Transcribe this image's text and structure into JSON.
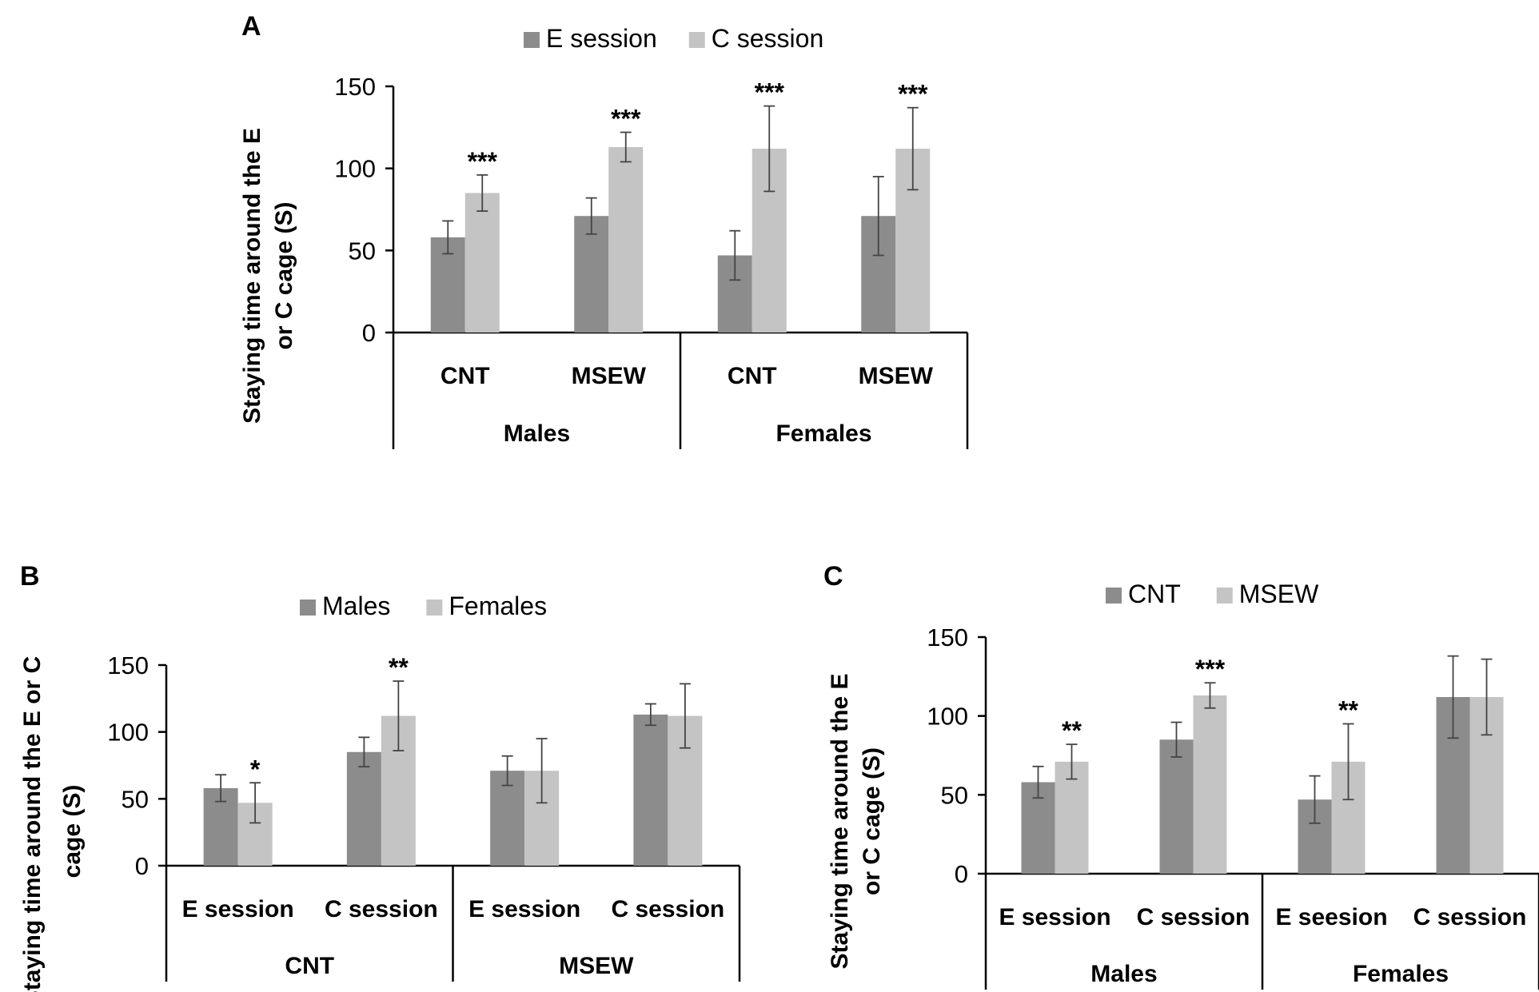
{
  "colors": {
    "dark_bar": "#8c8c8c",
    "light_bar": "#c4c4c4",
    "axis": "#000000",
    "error_bar": "#444444"
  },
  "chart_data": [
    {
      "id": "A",
      "panel_label": "A",
      "type": "bar",
      "title": "",
      "ylabel_lines": [
        "Staying time around the E",
        "or C cage (S)"
      ],
      "ylim": [
        0,
        150
      ],
      "yticks": [
        0,
        50,
        100,
        150
      ],
      "grid": false,
      "legend_position": "top",
      "categories": [
        "CNT",
        "MSEW",
        "CNT",
        "MSEW"
      ],
      "groups": [
        {
          "label": "Males",
          "span": [
            0,
            1
          ]
        },
        {
          "label": "Females",
          "span": [
            2,
            3
          ]
        }
      ],
      "series": [
        {
          "name": "E session",
          "color_key": "dark_bar",
          "values": [
            58,
            71,
            47,
            71
          ],
          "errors": [
            10,
            11,
            15,
            24
          ]
        },
        {
          "name": "C session",
          "color_key": "light_bar",
          "values": [
            85,
            113,
            112,
            112
          ],
          "errors": [
            11,
            9,
            26,
            25
          ]
        }
      ],
      "annotations": [
        {
          "text": "***",
          "category": 0,
          "series": 1
        },
        {
          "text": "***",
          "category": 1,
          "series": 1
        },
        {
          "text": "***",
          "category": 2,
          "series": 1
        },
        {
          "text": "***",
          "category": 3,
          "series": 1
        }
      ]
    },
    {
      "id": "B",
      "panel_label": "B",
      "type": "bar",
      "title": "",
      "ylabel_lines": [
        "Staying time around the E or C",
        "cage (S)"
      ],
      "ylim": [
        0,
        150
      ],
      "yticks": [
        0,
        50,
        100,
        150
      ],
      "grid": false,
      "legend_position": "top",
      "categories": [
        "E session",
        "C session",
        "E session",
        "C session"
      ],
      "groups": [
        {
          "label": "CNT",
          "span": [
            0,
            1
          ]
        },
        {
          "label": "MSEW",
          "span": [
            2,
            3
          ]
        }
      ],
      "series": [
        {
          "name": "Males",
          "color_key": "dark_bar",
          "values": [
            58,
            85,
            71,
            113
          ],
          "errors": [
            10,
            11,
            11,
            8
          ]
        },
        {
          "name": "Females",
          "color_key": "light_bar",
          "values": [
            47,
            112,
            71,
            112
          ],
          "errors": [
            15,
            26,
            24,
            24
          ]
        }
      ],
      "annotations": [
        {
          "text": "*",
          "category": 0,
          "series": 1
        },
        {
          "text": "**",
          "category": 1,
          "series": 1
        }
      ]
    },
    {
      "id": "C",
      "panel_label": "C",
      "type": "bar",
      "title": "",
      "ylabel_lines": [
        "Staying time around the E",
        "or C cage (S)"
      ],
      "ylim": [
        0,
        150
      ],
      "yticks": [
        0,
        50,
        100,
        150
      ],
      "grid": false,
      "legend_position": "top",
      "categories": [
        "E session",
        "C session",
        "E seesion",
        "C session"
      ],
      "groups": [
        {
          "label": "Males",
          "span": [
            0,
            1
          ]
        },
        {
          "label": "Females",
          "span": [
            2,
            3
          ]
        }
      ],
      "series": [
        {
          "name": "CNT",
          "color_key": "dark_bar",
          "values": [
            58,
            85,
            47,
            112
          ],
          "errors": [
            10,
            11,
            15,
            26
          ]
        },
        {
          "name": "MSEW",
          "color_key": "light_bar",
          "values": [
            71,
            113,
            71,
            112
          ],
          "errors": [
            11,
            8,
            24,
            24
          ]
        }
      ],
      "annotations": [
        {
          "text": "**",
          "category": 0,
          "series": 1
        },
        {
          "text": "***",
          "category": 1,
          "series": 1
        },
        {
          "text": "**",
          "category": 2,
          "series": 1
        }
      ]
    }
  ]
}
